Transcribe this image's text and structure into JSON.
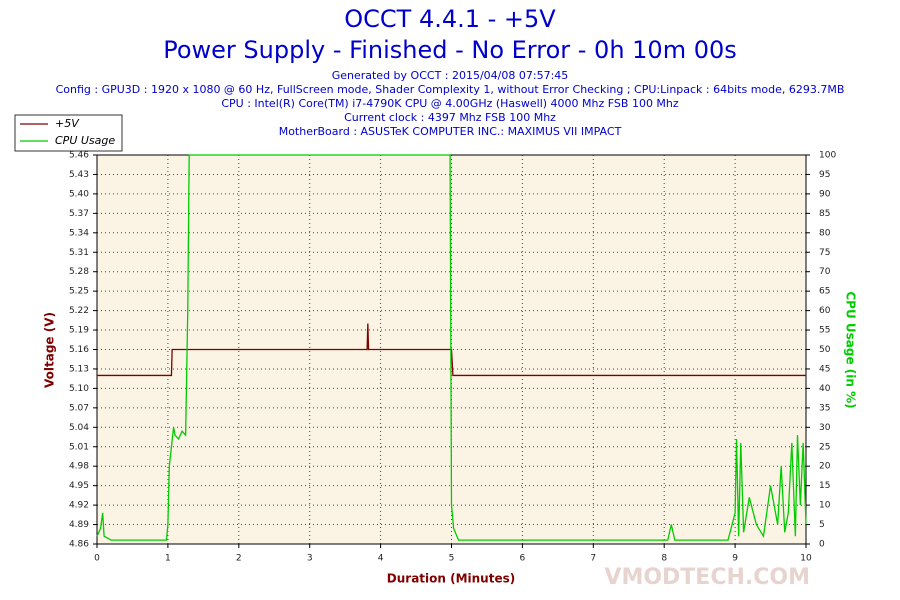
{
  "chart_data": {
    "type": "line",
    "title": "OCCT 4.4.1 - +5V",
    "subtitle": "Power Supply - Finished - No Error - 0h 10m 00s",
    "info": [
      "Generated by OCCT : 2015/04/08 07:57:45",
      "Config : GPU3D : 1920 x 1080 @ 60 Hz, FullScreen mode, Shader Complexity 1, without Error Checking ; CPU:Linpack : 64bits mode, 6293.7MB",
      "CPU : Intel(R) Core(TM) i7-4790K CPU @ 4.00GHz (Haswell) 4000 Mhz FSB 100 Mhz",
      "Current clock : 4397 Mhz FSB 100 Mhz",
      "MotherBoard : ASUSTeK COMPUTER INC.: MAXIMUS VII IMPACT"
    ],
    "x_label": "Duration (Minutes)",
    "y_label": "Voltage (V)",
    "y2_label": "CPU Usage (in %)",
    "watermark": "VMODTECH.COM",
    "xlim": [
      0,
      10
    ],
    "xticks": [
      0,
      1,
      2,
      3,
      4,
      5,
      6,
      7,
      8,
      9,
      10
    ],
    "ylim": [
      4.86,
      5.46
    ],
    "yticks": [
      4.86,
      4.89,
      4.92,
      4.95,
      4.98,
      5.01,
      5.04,
      5.07,
      {
        "value": 5.1,
        "label": "5.10"
      },
      5.13,
      5.16,
      5.19,
      5.22,
      5.25,
      5.28,
      5.31,
      5.34,
      5.37,
      {
        "value": 5.4,
        "label": "5.40"
      },
      5.43,
      5.46
    ],
    "y2lim": [
      0,
      100
    ],
    "y2ticks": [
      0,
      5,
      10,
      15,
      20,
      25,
      30,
      35,
      40,
      45,
      50,
      55,
      60,
      65,
      70,
      75,
      80,
      85,
      90,
      95,
      100
    ],
    "grid": true,
    "legend": "top-left",
    "series": [
      {
        "name": "+5V",
        "color": "#800000",
        "x": [
          0,
          1.05,
          1.06,
          3.8,
          3.81,
          3.82,
          3.83,
          3.84,
          5.0,
          5.02,
          10
        ],
        "values": [
          5.12,
          5.12,
          5.16,
          5.16,
          5.16,
          5.2,
          5.16,
          5.16,
          5.16,
          5.12,
          5.12
        ]
      },
      {
        "name": "CPU Usage",
        "color": "#00cc00",
        "axis": "y2",
        "x": [
          0,
          0.05,
          0.08,
          0.1,
          0.2,
          0.5,
          0.8,
          0.98,
          1.0,
          1.02,
          1.05,
          1.08,
          1.1,
          1.15,
          1.2,
          1.25,
          1.28,
          1.3,
          4.98,
          5.0,
          5.03,
          5.1,
          6,
          7,
          8.05,
          8.1,
          8.15,
          8.9,
          9.0,
          9.02,
          9.05,
          9.08,
          9.12,
          9.2,
          9.3,
          9.4,
          9.5,
          9.6,
          9.65,
          9.7,
          9.75,
          9.8,
          9.85,
          9.88,
          9.92,
          9.96,
          10
        ],
        "values": [
          2,
          4,
          8,
          2,
          1,
          1,
          1,
          1,
          5,
          20,
          25,
          30,
          28,
          27,
          29,
          28,
          60,
          100,
          100,
          10,
          4,
          1,
          1,
          1,
          1,
          5,
          1,
          1,
          8,
          27,
          2,
          26,
          3,
          12,
          5,
          2,
          15,
          5,
          20,
          3,
          8,
          26,
          2,
          28,
          10,
          26,
          5
        ]
      }
    ]
  }
}
